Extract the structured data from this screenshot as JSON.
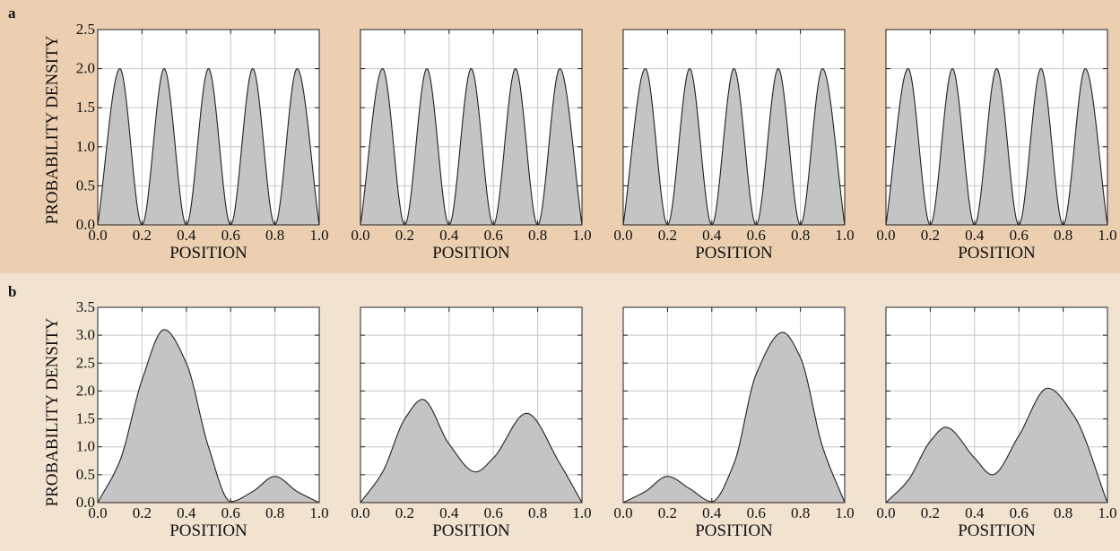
{
  "panels": [
    {
      "label": "a",
      "background": "#ebcfb0",
      "ylabel": "PROBABILITY DENSITY",
      "ylim": [
        0,
        2.5
      ],
      "yticks": [
        "0.0",
        "0.5",
        "1.0",
        "1.5",
        "2.0",
        "2.5"
      ],
      "xticks": [
        "0.0",
        "0.2",
        "0.4",
        "0.6",
        "0.8",
        "1.0"
      ],
      "xlabel": "POSITION"
    },
    {
      "label": "b",
      "background": "#f2e3d1",
      "ylabel": "PROBABILITY DENSITY",
      "ylim": [
        0,
        3.5
      ],
      "yticks": [
        "0.0",
        "0.5",
        "1.0",
        "1.5",
        "2.0",
        "2.5",
        "3.0",
        "3.5"
      ],
      "xticks": [
        "0.0",
        "0.2",
        "0.4",
        "0.6",
        "0.8",
        "1.0"
      ],
      "xlabel": "POSITION"
    }
  ],
  "chart_data": [
    {
      "type": "area",
      "row": "a",
      "xlabel": "POSITION",
      "ylabel": "PROBABILITY DENSITY",
      "xlim": [
        0,
        1
      ],
      "ylim": [
        0,
        2.5
      ],
      "grid": true,
      "x": [
        0.0,
        0.1,
        0.2,
        0.3,
        0.4,
        0.5,
        0.6,
        0.7,
        0.8,
        0.9,
        1.0
      ],
      "y": [
        0.0,
        2.0,
        0.0,
        2.0,
        0.0,
        2.0,
        0.0,
        2.0,
        0.0,
        2.0,
        0.0
      ]
    },
    {
      "type": "area",
      "row": "a",
      "xlabel": "POSITION",
      "xlim": [
        0,
        1
      ],
      "ylim": [
        0,
        2.5
      ],
      "grid": true,
      "x": [
        0.0,
        0.1,
        0.2,
        0.3,
        0.4,
        0.5,
        0.6,
        0.7,
        0.8,
        0.9,
        1.0
      ],
      "y": [
        0.0,
        2.0,
        0.0,
        2.0,
        0.0,
        2.0,
        0.0,
        2.0,
        0.0,
        2.0,
        0.0
      ]
    },
    {
      "type": "area",
      "row": "a",
      "xlabel": "POSITION",
      "xlim": [
        0,
        1
      ],
      "ylim": [
        0,
        2.5
      ],
      "grid": true,
      "x": [
        0.0,
        0.1,
        0.2,
        0.3,
        0.4,
        0.5,
        0.6,
        0.7,
        0.8,
        0.9,
        1.0
      ],
      "y": [
        0.0,
        2.0,
        0.0,
        2.0,
        0.0,
        2.0,
        0.0,
        2.0,
        0.0,
        2.0,
        0.0
      ]
    },
    {
      "type": "area",
      "row": "a",
      "xlabel": "POSITION",
      "xlim": [
        0,
        1
      ],
      "ylim": [
        0,
        2.5
      ],
      "grid": true,
      "x": [
        0.0,
        0.1,
        0.2,
        0.3,
        0.4,
        0.5,
        0.6,
        0.7,
        0.8,
        0.9,
        1.0
      ],
      "y": [
        0.0,
        2.0,
        0.0,
        2.0,
        0.0,
        2.0,
        0.0,
        2.0,
        0.0,
        2.0,
        0.0
      ]
    },
    {
      "type": "area",
      "row": "b",
      "xlabel": "POSITION",
      "ylabel": "PROBABILITY DENSITY",
      "xlim": [
        0,
        1
      ],
      "ylim": [
        0,
        3.5
      ],
      "grid": true,
      "x": [
        0.0,
        0.1,
        0.2,
        0.3,
        0.4,
        0.5,
        0.6,
        0.7,
        0.8,
        0.9,
        1.0
      ],
      "y": [
        0.0,
        0.75,
        2.2,
        3.1,
        2.5,
        1.0,
        0.02,
        0.2,
        0.47,
        0.2,
        0.0
      ]
    },
    {
      "type": "area",
      "row": "b",
      "xlabel": "POSITION",
      "xlim": [
        0,
        1
      ],
      "ylim": [
        0,
        3.5
      ],
      "grid": true,
      "x": [
        0.0,
        0.1,
        0.2,
        0.28,
        0.4,
        0.52,
        0.6,
        0.75,
        0.9,
        1.0
      ],
      "y": [
        0.0,
        0.55,
        1.5,
        1.85,
        1.05,
        0.55,
        0.8,
        1.6,
        0.7,
        0.0
      ]
    },
    {
      "type": "area",
      "row": "b",
      "xlabel": "POSITION",
      "xlim": [
        0,
        1
      ],
      "ylim": [
        0,
        3.5
      ],
      "grid": true,
      "x": [
        0.0,
        0.1,
        0.2,
        0.3,
        0.4,
        0.5,
        0.6,
        0.72,
        0.8,
        0.9,
        1.0
      ],
      "y": [
        0.0,
        0.2,
        0.47,
        0.25,
        0.02,
        0.7,
        2.3,
        3.05,
        2.6,
        1.0,
        0.0
      ]
    },
    {
      "type": "area",
      "row": "b",
      "xlabel": "POSITION",
      "xlim": [
        0,
        1
      ],
      "ylim": [
        0,
        3.5
      ],
      "grid": true,
      "x": [
        0.0,
        0.1,
        0.2,
        0.27,
        0.4,
        0.48,
        0.6,
        0.73,
        0.85,
        1.0
      ],
      "y": [
        0.0,
        0.4,
        1.1,
        1.35,
        0.8,
        0.5,
        1.2,
        2.05,
        1.55,
        0.0
      ]
    }
  ]
}
